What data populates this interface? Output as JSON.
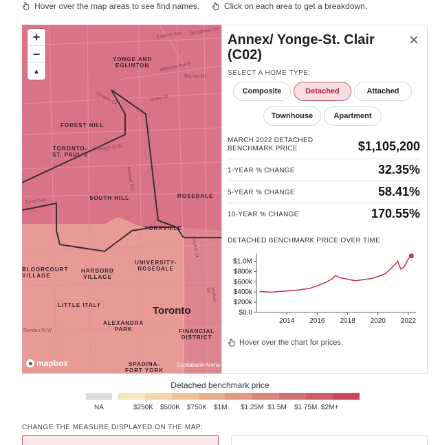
{
  "hints": {
    "hover_text": "Hover over the map areas to see find names.",
    "click_text": "Click on each area to get a breakdown."
  },
  "map": {
    "zoom_in": "+",
    "zoom_out": "−",
    "compass": "▲",
    "labels": {
      "yonge_eglinton": "YONGE AND\nEGLINTON",
      "forest_hill": "FOREST HILL",
      "toronto_st_pauls": "TORONTO-\nST. PAUL'S",
      "south_hill": "SOUTH HILL",
      "rosedale": "ROSEDALE",
      "yorkville": "YORKVILLE",
      "bloorcourt": "BLOORCOURT\nVILLAGE",
      "harbord": "HARBORD\nVILLAGE",
      "university_rosedale": "UNIVERSITY-\nROSEDALE",
      "little_italy": "LITTLE ITALY",
      "alexandra_park": "ALEXANDRA\nPARK",
      "financial_district": "FINANCIAL\nDISTRICT",
      "spadina_fort_york": "SPADINA-\nFORT YORK",
      "city": "Toronto"
    },
    "streets": {
      "erskine": "Erskine Ave",
      "broadway": "Broadway Ave",
      "hillsdale": "Hillsdale Ave E",
      "belsize": "Belsize Dr",
      "chaplin": "Chaplin Cr",
      "balliol": "Balliol St",
      "heath": "Heath St W",
      "avenue_rd": "Avenue Rd",
      "tyrrel": "Tyrrel Ave",
      "dundas": "Dundas St W",
      "church": "Church St",
      "mutual": "Mutual St",
      "st_clair": "Ave Rd"
    },
    "logo_text": "mapbox",
    "attribution": "Scotiabank Arena"
  },
  "panel": {
    "title": "Annex/ Yonge-St. Clair (C02)",
    "close": "×",
    "select_label": "SELECT A HOME TYPE:",
    "home_types": [
      "Composite",
      "Detached",
      "Attached",
      "Townhouse",
      "Apartment"
    ],
    "active_type": "Detached",
    "stats": [
      {
        "label": "MARCH 2022 DETACHED\nBENCHMARK PRICE",
        "value": "$1,105,200"
      },
      {
        "label": "1-YEAR % CHANGE",
        "value": "32.35%"
      },
      {
        "label": "5-YEAR % CHANGE",
        "value": "58.41%"
      },
      {
        "label": "10-YEAR % CHANGE",
        "value": "170.55%"
      }
    ],
    "chart_title": "DETACHED BENCHMARK PRICE OVER TIME",
    "chart_hint": "Hover over the chart for prices."
  },
  "chart_data": {
    "type": "line",
    "title": "DETACHED BENCHMARK PRICE OVER TIME",
    "xlabel": "",
    "ylabel": "",
    "x": [
      2012.2,
      2012.5,
      2013.0,
      2013.5,
      2014.0,
      2014.5,
      2015.0,
      2015.5,
      2016.0,
      2016.5,
      2017.0,
      2017.2,
      2017.5,
      2018.0,
      2018.5,
      2019.0,
      2019.5,
      2020.0,
      2020.5,
      2021.0,
      2021.3,
      2021.5,
      2021.7,
      2022.0,
      2022.2
    ],
    "y": [
      410000,
      405000,
      395000,
      410000,
      420000,
      430000,
      450000,
      470000,
      520000,
      580000,
      660000,
      720000,
      680000,
      650000,
      620000,
      640000,
      660000,
      700000,
      760000,
      900000,
      1000000,
      850000,
      880000,
      1050000,
      1105200
    ],
    "xlim": [
      2012,
      2022.5
    ],
    "ylim": [
      0,
      1100000
    ],
    "x_ticks": [
      "2014",
      "2016",
      "2018",
      "2020",
      "2022"
    ],
    "y_ticks": [
      "$0.0",
      "$200k",
      "$400k",
      "$600k",
      "$800k",
      "$1.0M"
    ],
    "line_color": "#c43a4e"
  },
  "legend": {
    "title": "Detached benchmark price",
    "na_label": "NA",
    "na_color": "#dcdcdc",
    "colors": [
      "#f7e6bd",
      "#f3d5a8",
      "#efc396",
      "#e9ad88",
      "#e3987e",
      "#dc8478",
      "#d57072",
      "#cf5c69",
      "#c9475f"
    ],
    "labels": [
      "$250K",
      "$500K",
      "$750K",
      "$1M",
      "$1.25M",
      "$1.5M",
      "$1.75M",
      "$2M+"
    ]
  },
  "measure": {
    "title": "CHANGE THE MEASURE DISPLAYED ON THE MAP:"
  }
}
